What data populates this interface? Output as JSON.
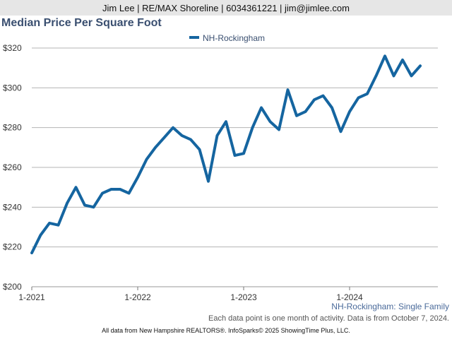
{
  "header": {
    "text": "Jim Lee | RE/MAX Shoreline | 6034361221 | jim@jimlee.com"
  },
  "title": "Median Price Per Square Foot",
  "subtitle": "NH-Rockingham: Single Family",
  "note": "Each data point is one month of activity. Data is from October 7, 2024.",
  "footer": "All data from New Hampshire REALTORS®. InfoSparks© 2025 ShowingTime Plus, LLC.",
  "colors": {
    "line": "#1565a0",
    "title": "#3a4f70",
    "grid": "#b5b5b5"
  },
  "chart_data": {
    "type": "line",
    "title": "Median Price Per Square Foot",
    "x": [
      "2021-01",
      "2021-02",
      "2021-03",
      "2021-04",
      "2021-05",
      "2021-06",
      "2021-07",
      "2021-08",
      "2021-09",
      "2021-10",
      "2021-11",
      "2021-12",
      "2022-01",
      "2022-02",
      "2022-03",
      "2022-04",
      "2022-05",
      "2022-06",
      "2022-07",
      "2022-08",
      "2022-09",
      "2022-10",
      "2022-11",
      "2022-12",
      "2023-01",
      "2023-02",
      "2023-03",
      "2023-04",
      "2023-05",
      "2023-06",
      "2023-07",
      "2023-08",
      "2023-09",
      "2023-10",
      "2023-11",
      "2023-12",
      "2024-01",
      "2024-02",
      "2024-03",
      "2024-04",
      "2024-05",
      "2024-06",
      "2024-07",
      "2024-08",
      "2024-09"
    ],
    "x_tick_labels": [
      "1-2021",
      "1-2022",
      "1-2023",
      "1-2024"
    ],
    "series": [
      {
        "name": "NH-Rockingham",
        "values": [
          217,
          226,
          232,
          231,
          242,
          250,
          241,
          240,
          247,
          249,
          249,
          247,
          255,
          264,
          270,
          275,
          280,
          276,
          274,
          269,
          253,
          276,
          283,
          266,
          267,
          280,
          290,
          283,
          279,
          299,
          286,
          288,
          294,
          296,
          290,
          278,
          288,
          295,
          297,
          306,
          316,
          306,
          314,
          306,
          311
        ]
      }
    ],
    "y_ticks": [
      "$200",
      "$220",
      "$240",
      "$260",
      "$280",
      "$300",
      "$320"
    ],
    "ylim": [
      200,
      320
    ],
    "legend": "top-center",
    "grid": "horizontal"
  }
}
